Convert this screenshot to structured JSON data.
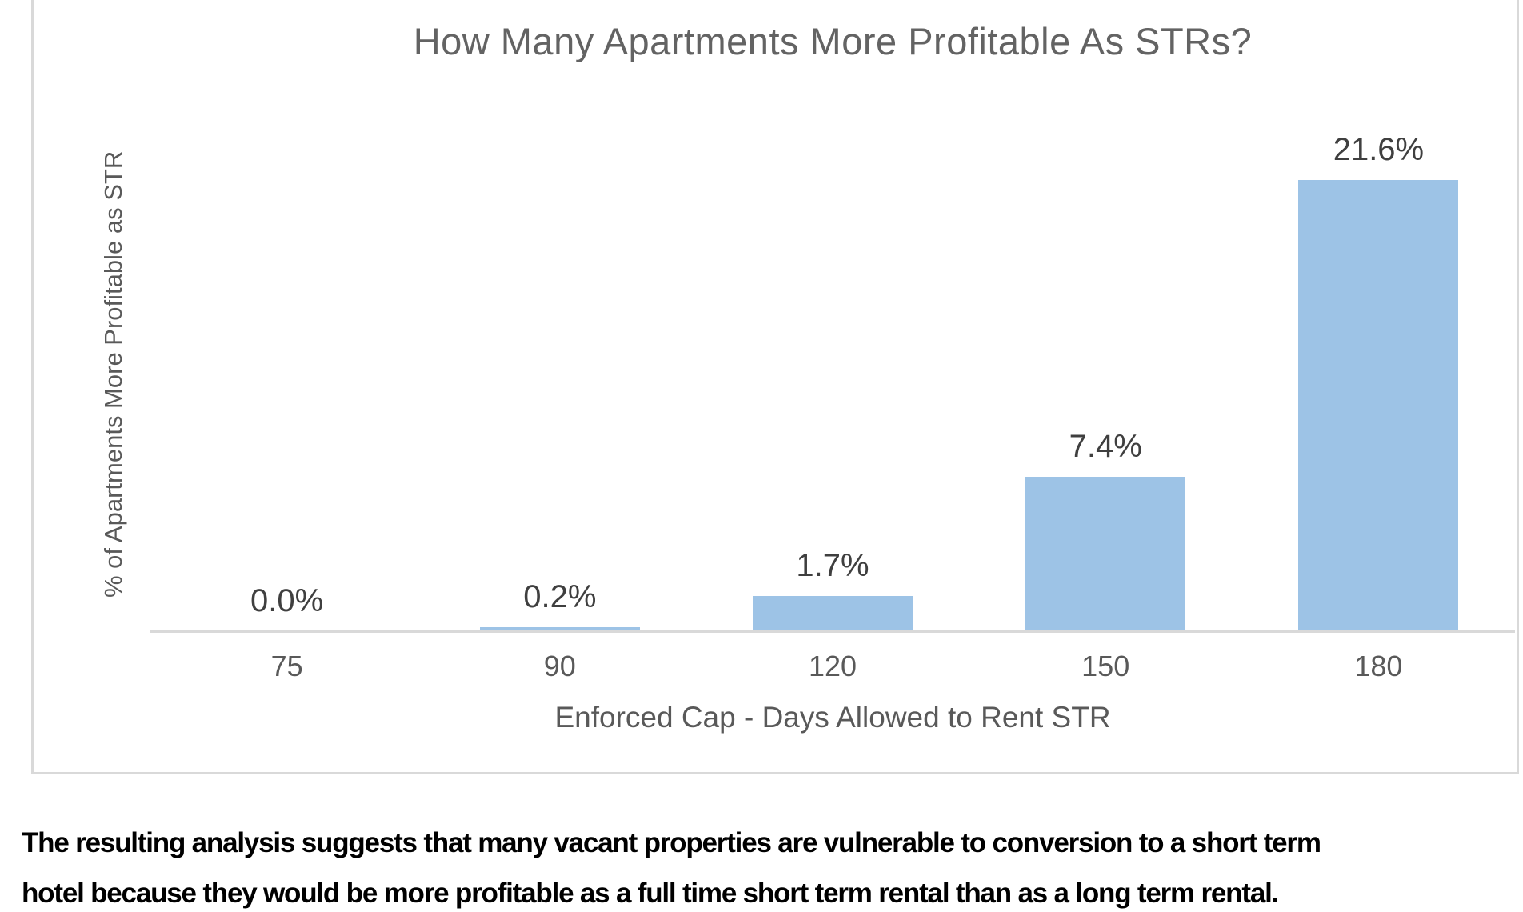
{
  "chart": {
    "title": "How Many Apartments More Profitable As STRs?",
    "y_axis_title": "% of Apartments More Profitable as STR",
    "x_axis_title": "Enforced Cap - Days Allowed to Rent STR"
  },
  "chart_data": {
    "type": "bar",
    "title": "How Many Apartments More Profitable As STRs?",
    "categories": [
      "75",
      "90",
      "120",
      "150",
      "180"
    ],
    "values": [
      0.0,
      0.2,
      1.7,
      7.4,
      21.6
    ],
    "data_labels": [
      "0.0%",
      "0.2%",
      "1.7%",
      "7.4%",
      "21.6%"
    ],
    "xlabel": "Enforced Cap - Days Allowed to Rent STR",
    "ylabel": "% of Apartments More Profitable as STR",
    "ylim": [
      0,
      25
    ],
    "grid": false,
    "legend": false,
    "bar_color": "#9DC3E6",
    "axis_color": "#D9D9D9",
    "title_color": "#636363",
    "label_color": "#3F3F3F",
    "tick_color": "#595959"
  },
  "footer": {
    "line1": "The resulting analysis suggests that many vacant properties are vulnerable to conversion to a short term",
    "line2": "hotel because they would be more profitable as a full time short term rental than as a long term rental."
  }
}
